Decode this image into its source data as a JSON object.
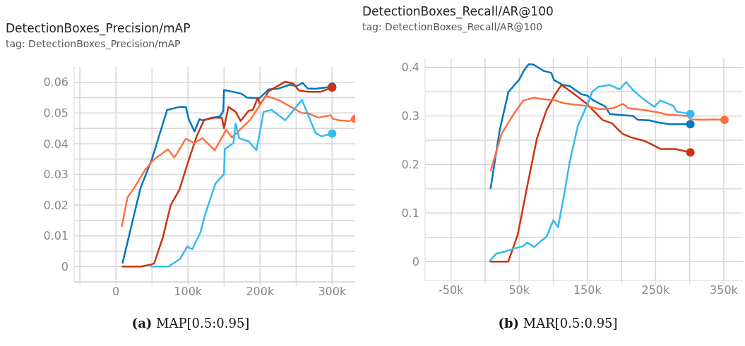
{
  "chart_data": [
    {
      "type": "line",
      "title": "DetectionBoxes_Precision/mAP",
      "subtitle": "tag: DetectionBoxes_Precision/mAP",
      "annotations": [
        "(a) MAP[0.5:0.95]"
      ],
      "xlim": [
        -58000,
        332000
      ],
      "xticks": [
        {
          "value": -50000,
          "label": null
        },
        {
          "value": 0,
          "label": "0"
        },
        {
          "value": 50000,
          "label": null
        },
        {
          "value": 100000,
          "label": "100k"
        },
        {
          "value": 150000,
          "label": null
        },
        {
          "value": 200000,
          "label": "200k"
        },
        {
          "value": 250000,
          "label": null
        },
        {
          "value": 300000,
          "label": "300k"
        }
      ],
      "ylim": [
        -0.005,
        0.065
      ],
      "yticks": [
        {
          "value": -0.005,
          "label": null
        },
        0,
        {
          "value": 0.005,
          "label": null
        },
        0.01,
        {
          "value": 0.015,
          "label": null
        },
        0.02,
        {
          "value": 0.025,
          "label": null
        },
        0.03,
        {
          "value": 0.035,
          "label": null
        },
        0.04,
        {
          "value": 0.045,
          "label": null
        },
        0.05,
        {
          "value": 0.055,
          "label": null
        },
        0.06
      ],
      "grid": true,
      "legend": false,
      "marker": "none",
      "line_style": "solid",
      "series": [
        {
          "color": "#0077bb",
          "x": [
            9000,
            34000,
            50000,
            71000,
            89000,
            97000,
            101000,
            109000,
            116000,
            120000,
            133000,
            145000,
            149000,
            150000,
            161000,
            174000,
            182000,
            199000,
            212000,
            225000,
            241000,
            251000,
            259000,
            266000,
            277000,
            300000
          ],
          "values": [
            0.001,
            0.0255,
            0.035,
            0.051,
            0.052,
            0.052,
            0.048,
            0.044,
            0.048,
            0.0476,
            0.0483,
            0.049,
            0.0507,
            0.0575,
            0.057,
            0.0563,
            0.055,
            0.0548,
            0.0577,
            0.0579,
            0.0592,
            0.0588,
            0.0598,
            0.058,
            0.0579,
            0.0586
          ]
        },
        {
          "color": "#cc3311",
          "x": [
            8000,
            35000,
            48000,
            53000,
            65000,
            76000,
            88000,
            101000,
            112000,
            122000,
            133000,
            147000,
            150000,
            156000,
            166000,
            173000,
            184000,
            190000,
            197000,
            200000,
            212000,
            235000,
            246000,
            254000,
            267000,
            284000,
            300000
          ],
          "values": [
            0,
            0,
            0.0006,
            0.001,
            0.0094,
            0.02,
            0.025,
            0.0347,
            0.0424,
            0.0476,
            0.0485,
            0.0484,
            0.045,
            0.052,
            0.0504,
            0.0474,
            0.0507,
            0.051,
            0.055,
            0.0527,
            0.0571,
            0.0602,
            0.0596,
            0.0573,
            0.0569,
            0.0569,
            0.0583
          ]
        },
        {
          "color": "#ff7043",
          "x": [
            8000,
            16000,
            25000,
            40000,
            52000,
            72000,
            81000,
            97000,
            109000,
            120000,
            137000,
            153000,
            161000,
            186000,
            199000,
            208000,
            225000,
            258000,
            267000,
            281000,
            298000,
            301000,
            310000,
            323000,
            332000
          ],
          "values": [
            0.0129,
            0.0225,
            0.0255,
            0.0313,
            0.0347,
            0.0382,
            0.0355,
            0.0416,
            0.0402,
            0.0418,
            0.0379,
            0.0445,
            0.042,
            0.0477,
            0.0523,
            0.0556,
            0.0543,
            0.05,
            0.0499,
            0.0485,
            0.0493,
            0.0481,
            0.0476,
            0.0474,
            0.0481
          ]
        },
        {
          "color": "#33bbee",
          "x": [
            48000,
            73000,
            89000,
            99000,
            106000,
            117000,
            124000,
            138000,
            150000,
            151000,
            163000,
            166000,
            171000,
            184000,
            195000,
            205000,
            216000,
            235000,
            258000,
            277000,
            285000,
            300000
          ],
          "values": [
            0,
            0,
            0.0025,
            0.0065,
            0.0056,
            0.011,
            0.0171,
            0.027,
            0.0301,
            0.0382,
            0.0402,
            0.0466,
            0.0418,
            0.0408,
            0.0379,
            0.0504,
            0.051,
            0.0476,
            0.0543,
            0.0435,
            0.0424,
            0.0433
          ]
        }
      ]
    },
    {
      "type": "line",
      "title": "DetectionBoxes_Recall/AR@100",
      "subtitle": "tag: DetectionBoxes_Recall/AR@100",
      "annotations": [
        "(b) MAR[0.5:0.95]"
      ],
      "xlim": [
        -88000,
        378000
      ],
      "xticks": [
        {
          "value": -50000,
          "label": "-50k"
        },
        {
          "value": 0,
          "label": null
        },
        {
          "value": 50000,
          "label": "50k"
        },
        {
          "value": 100000,
          "label": null
        },
        {
          "value": 150000,
          "label": "150k"
        },
        {
          "value": 200000,
          "label": null
        },
        {
          "value": 250000,
          "label": "250k"
        },
        {
          "value": 300000,
          "label": null
        },
        {
          "value": 350000,
          "label": "350k"
        }
      ],
      "ylim": [
        -0.039,
        0.42
      ],
      "yticks": [
        0,
        {
          "value": 0.05,
          "label": null
        },
        0.1,
        {
          "value": 0.15,
          "label": null
        },
        0.2,
        {
          "value": 0.25,
          "label": null
        },
        0.3,
        {
          "value": 0.35,
          "label": null
        },
        0.4
      ],
      "grid": true,
      "legend": false,
      "marker": "none",
      "line_style": "solid",
      "series": [
        {
          "color": "#0077bb",
          "x": [
            8000,
            21000,
            34000,
            50000,
            57000,
            64000,
            71000,
            86000,
            97000,
            101000,
            114000,
            124000,
            141000,
            150000,
            159000,
            176000,
            183000,
            200000,
            217000,
            224000,
            241000,
            252000,
            271000,
            301000
          ],
          "values": [
            0.15,
            0.268,
            0.349,
            0.375,
            0.394,
            0.407,
            0.406,
            0.393,
            0.389,
            0.374,
            0.364,
            0.362,
            0.345,
            0.342,
            0.332,
            0.32,
            0.304,
            0.302,
            0.3,
            0.292,
            0.291,
            0.287,
            0.283,
            0.283
          ]
        },
        {
          "color": "#cc3311",
          "x": [
            7000,
            34000,
            48000,
            62000,
            76000,
            90000,
            102000,
            112000,
            128000,
            150000,
            172000,
            186000,
            193000,
            202000,
            214000,
            233000,
            248000,
            257000,
            279000,
            301000
          ],
          "values": [
            0,
            0,
            0.056,
            0.157,
            0.254,
            0.312,
            0.343,
            0.364,
            0.348,
            0.324,
            0.292,
            0.285,
            0.275,
            0.263,
            0.256,
            0.249,
            0.239,
            0.232,
            0.232,
            0.225
          ]
        },
        {
          "color": "#ff7043",
          "x": [
            8000,
            24000,
            41000,
            56000,
            72000,
            83000,
            100000,
            117000,
            148000,
            169000,
            188000,
            202000,
            210000,
            234000,
            255000,
            266000,
            297000,
            302000,
            321000,
            334000,
            351000
          ],
          "values": [
            0.186,
            0.263,
            0.302,
            0.332,
            0.338,
            0.335,
            0.333,
            0.326,
            0.321,
            0.314,
            0.316,
            0.325,
            0.316,
            0.312,
            0.307,
            0.303,
            0.3,
            0.293,
            0.292,
            0.293,
            0.292
          ]
        },
        {
          "color": "#33bbee",
          "x": [
            6000,
            17000,
            31000,
            45000,
            55000,
            62000,
            72000,
            79000,
            90000,
            100000,
            107000,
            117000,
            124000,
            136000,
            150000,
            157000,
            166000,
            183000,
            197000,
            207000,
            217000,
            231000,
            248000,
            257000,
            276000,
            281000,
            301000
          ],
          "values": [
            0,
            0.017,
            0.021,
            0.028,
            0.031,
            0.039,
            0.03,
            0.039,
            0.051,
            0.085,
            0.071,
            0.147,
            0.205,
            0.28,
            0.324,
            0.35,
            0.36,
            0.364,
            0.355,
            0.37,
            0.353,
            0.336,
            0.319,
            0.332,
            0.321,
            0.309,
            0.304
          ]
        }
      ]
    }
  ]
}
